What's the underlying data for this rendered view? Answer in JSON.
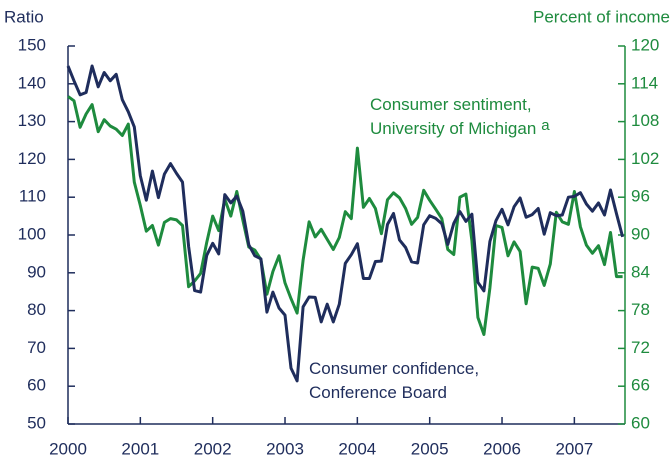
{
  "chart_data": {
    "type": "line",
    "y_label": "Ratio",
    "y2_label": "Percent of income",
    "x": [
      2000,
      2000.083,
      2000.167,
      2000.25,
      2000.333,
      2000.417,
      2000.5,
      2000.583,
      2000.667,
      2000.75,
      2000.833,
      2000.917,
      2001,
      2001.083,
      2001.167,
      2001.25,
      2001.333,
      2001.417,
      2001.5,
      2001.583,
      2001.667,
      2001.75,
      2001.833,
      2001.917,
      2002,
      2002.083,
      2002.167,
      2002.25,
      2002.333,
      2002.417,
      2002.5,
      2002.583,
      2002.667,
      2002.75,
      2002.833,
      2002.917,
      2003,
      2003.083,
      2003.167,
      2003.25,
      2003.333,
      2003.417,
      2003.5,
      2003.583,
      2003.667,
      2003.75,
      2003.833,
      2003.917,
      2004,
      2004.083,
      2004.167,
      2004.25,
      2004.333,
      2004.417,
      2004.5,
      2004.583,
      2004.667,
      2004.75,
      2004.833,
      2004.917,
      2005,
      2005.083,
      2005.167,
      2005.25,
      2005.333,
      2005.417,
      2005.5,
      2005.583,
      2005.667,
      2005.75,
      2005.833,
      2005.917,
      2006,
      2006.083,
      2006.167,
      2006.25,
      2006.333,
      2006.417,
      2006.5,
      2006.583,
      2006.667,
      2006.75,
      2006.833,
      2006.917,
      2007,
      2007.083,
      2007.167,
      2007.25,
      2007.333,
      2007.417,
      2007.5,
      2007.583,
      2007.667
    ],
    "series": [
      {
        "name": "Consumer confidence, Conference Board",
        "color": "#1f2d5c",
        "axis": "y",
        "values": [
          144.7,
          140.8,
          137.1,
          137.7,
          144.7,
          139.2,
          143.0,
          140.8,
          142.5,
          135.8,
          132.6,
          128.6,
          115.7,
          109.2,
          116.9,
          109.9,
          116.1,
          118.9,
          116.3,
          114.0,
          97.0,
          85.3,
          84.9,
          94.6,
          97.8,
          95.0,
          110.7,
          108.5,
          110.3,
          106.3,
          97.4,
          94.5,
          93.7,
          79.6,
          84.9,
          80.7,
          78.8,
          64.8,
          61.4,
          81.0,
          83.6,
          83.5,
          77.0,
          81.7,
          77.0,
          81.7,
          92.5,
          94.8,
          97.7,
          88.5,
          88.5,
          93.0,
          93.1,
          102.8,
          105.7,
          98.7,
          96.7,
          92.9,
          92.6,
          102.7,
          105.1,
          104.4,
          103.0,
          97.5,
          103.1,
          106.2,
          103.6,
          105.5,
          87.5,
          85.2,
          98.3,
          103.8,
          106.8,
          102.7,
          107.5,
          109.8,
          104.7,
          105.4,
          107.0,
          100.2,
          105.9,
          105.1,
          105.3,
          110.0,
          110.2,
          111.2,
          108.2,
          106.3,
          108.5,
          105.3,
          111.9,
          105.6,
          99.5
        ]
      },
      {
        "name": "Consumer sentiment, University of Michigan",
        "note": "a",
        "color": "#1e8b3e",
        "axis": "y2",
        "values": [
          112.0,
          111.3,
          107.1,
          109.2,
          110.7,
          106.4,
          108.3,
          107.3,
          106.8,
          105.8,
          107.6,
          98.4,
          94.7,
          90.6,
          91.5,
          88.4,
          92.0,
          92.6,
          92.4,
          91.5,
          81.8,
          82.7,
          83.9,
          88.8,
          93.0,
          90.7,
          95.7,
          93.0,
          96.9,
          92.4,
          88.1,
          87.6,
          86.1,
          80.6,
          84.2,
          86.7,
          82.4,
          79.9,
          77.6,
          86.0,
          92.1,
          89.7,
          90.9,
          89.3,
          87.7,
          89.6,
          93.7,
          92.6,
          103.8,
          94.4,
          95.8,
          94.2,
          90.2,
          95.6,
          96.7,
          95.9,
          94.2,
          91.7,
          92.8,
          97.1,
          95.5,
          94.1,
          92.6,
          87.7,
          86.9,
          96.0,
          96.5,
          89.1,
          76.9,
          74.2,
          81.6,
          91.5,
          91.2,
          86.7,
          88.9,
          87.4,
          79.1,
          84.9,
          84.7,
          82.0,
          85.4,
          93.6,
          92.1,
          91.7,
          96.9,
          91.3,
          88.4,
          87.1,
          88.3,
          85.3,
          90.4,
          83.4,
          83.4
        ]
      }
    ],
    "xlim": [
      2000,
      2007.7
    ],
    "xticks": [
      2000,
      2001,
      2002,
      2003,
      2004,
      2005,
      2006,
      2007
    ],
    "ylim": [
      50,
      150
    ],
    "yticks": [
      50,
      60,
      70,
      80,
      90,
      100,
      110,
      120,
      130,
      140,
      150
    ],
    "y2lim": [
      60,
      120
    ],
    "y2ticks": [
      60,
      66,
      72,
      78,
      84,
      90,
      96,
      102,
      108,
      114,
      120
    ]
  }
}
